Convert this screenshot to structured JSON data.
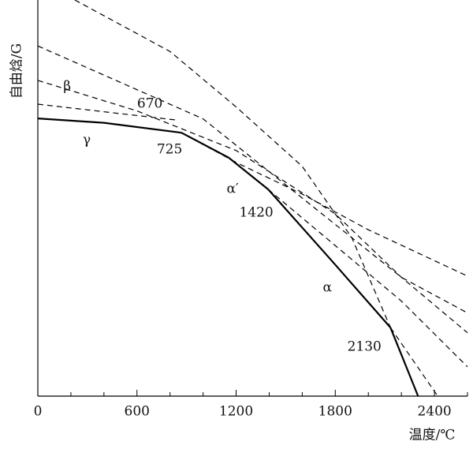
{
  "chart_data": {
    "type": "line",
    "xlabel": "温度/℃",
    "ylabel": "自由焓/G",
    "xlim": [
      0,
      2600
    ],
    "ylim": [
      0,
      100
    ],
    "xticks": [
      0,
      600,
      1200,
      1800,
      2400
    ],
    "xminor_ticks": [
      200,
      400,
      800,
      1000,
      1400,
      1600,
      2000,
      2200,
      2600
    ],
    "series": [
      {
        "style": "solid",
        "color": "#000",
        "x": [
          0,
          400,
          869
        ],
        "values": [
          70.1,
          69,
          66.5
        ]
      },
      {
        "style": "dashed",
        "color": "#000",
        "x": [
          869,
          1200,
          1600,
          2000,
          2600
        ],
        "values": [
          66.5,
          59,
          51,
          42,
          30.3
        ]
      },
      {
        "style": "solid",
        "color": "#000",
        "x": [
          869,
          1155,
          1394
        ],
        "values": [
          66.5,
          60.2,
          52.2
        ]
      },
      {
        "style": "dashed",
        "color": "#000",
        "x": [
          0,
          838
        ],
        "values": [
          73.7,
          69.7
        ]
      },
      {
        "style": "dashed",
        "color": "#000",
        "x": [
          1394,
          1800,
          2200,
          2600
        ],
        "values": [
          52.2,
          38,
          24,
          7.4
        ]
      },
      {
        "style": "solid",
        "color": "#000",
        "x": [
          1394,
          1776,
          2134
        ],
        "values": [
          52.2,
          34.3,
          17.3
        ]
      },
      {
        "style": "dashed",
        "color": "#000",
        "x": [
          2134,
          2420
        ],
        "values": [
          17.3,
          0
        ]
      },
      {
        "style": "solid",
        "color": "#000",
        "x": [
          2134,
          2301
        ],
        "values": [
          17.3,
          0
        ]
      },
      {
        "style": "dashed",
        "color": "#000",
        "x": [
          224,
          800,
          1200,
          1600,
          1900,
          2134
        ],
        "values": [
          100,
          87,
          73,
          58,
          40,
          17.3
        ]
      },
      {
        "style": "dashed",
        "color": "#000",
        "x": [
          0,
          600,
          1200,
          1800,
          2200,
          2600
        ],
        "values": [
          79.7,
          72,
          62,
          46,
          30,
          16
        ]
      },
      {
        "style": "dashed",
        "color": "#000",
        "x": [
          0,
          1000,
          1600,
          2200,
          2600
        ],
        "values": [
          88.4,
          70,
          50,
          30,
          21
        ]
      }
    ],
    "annotations": [
      {
        "text": "γ",
        "x": 296,
        "y": 64.5
      },
      {
        "text": "β",
        "x": 177,
        "y": 78.1
      },
      {
        "text": "670",
        "x": 678,
        "y": 73.7
      },
      {
        "text": "725",
        "x": 797,
        "y": 62.2
      },
      {
        "text": "α′",
        "x": 1179,
        "y": 52.2
      },
      {
        "text": "1420",
        "x": 1322,
        "y": 46.2
      },
      {
        "text": "α",
        "x": 1752,
        "y": 27.3
      },
      {
        "text": "2130",
        "x": 1976,
        "y": 12.4
      }
    ]
  }
}
